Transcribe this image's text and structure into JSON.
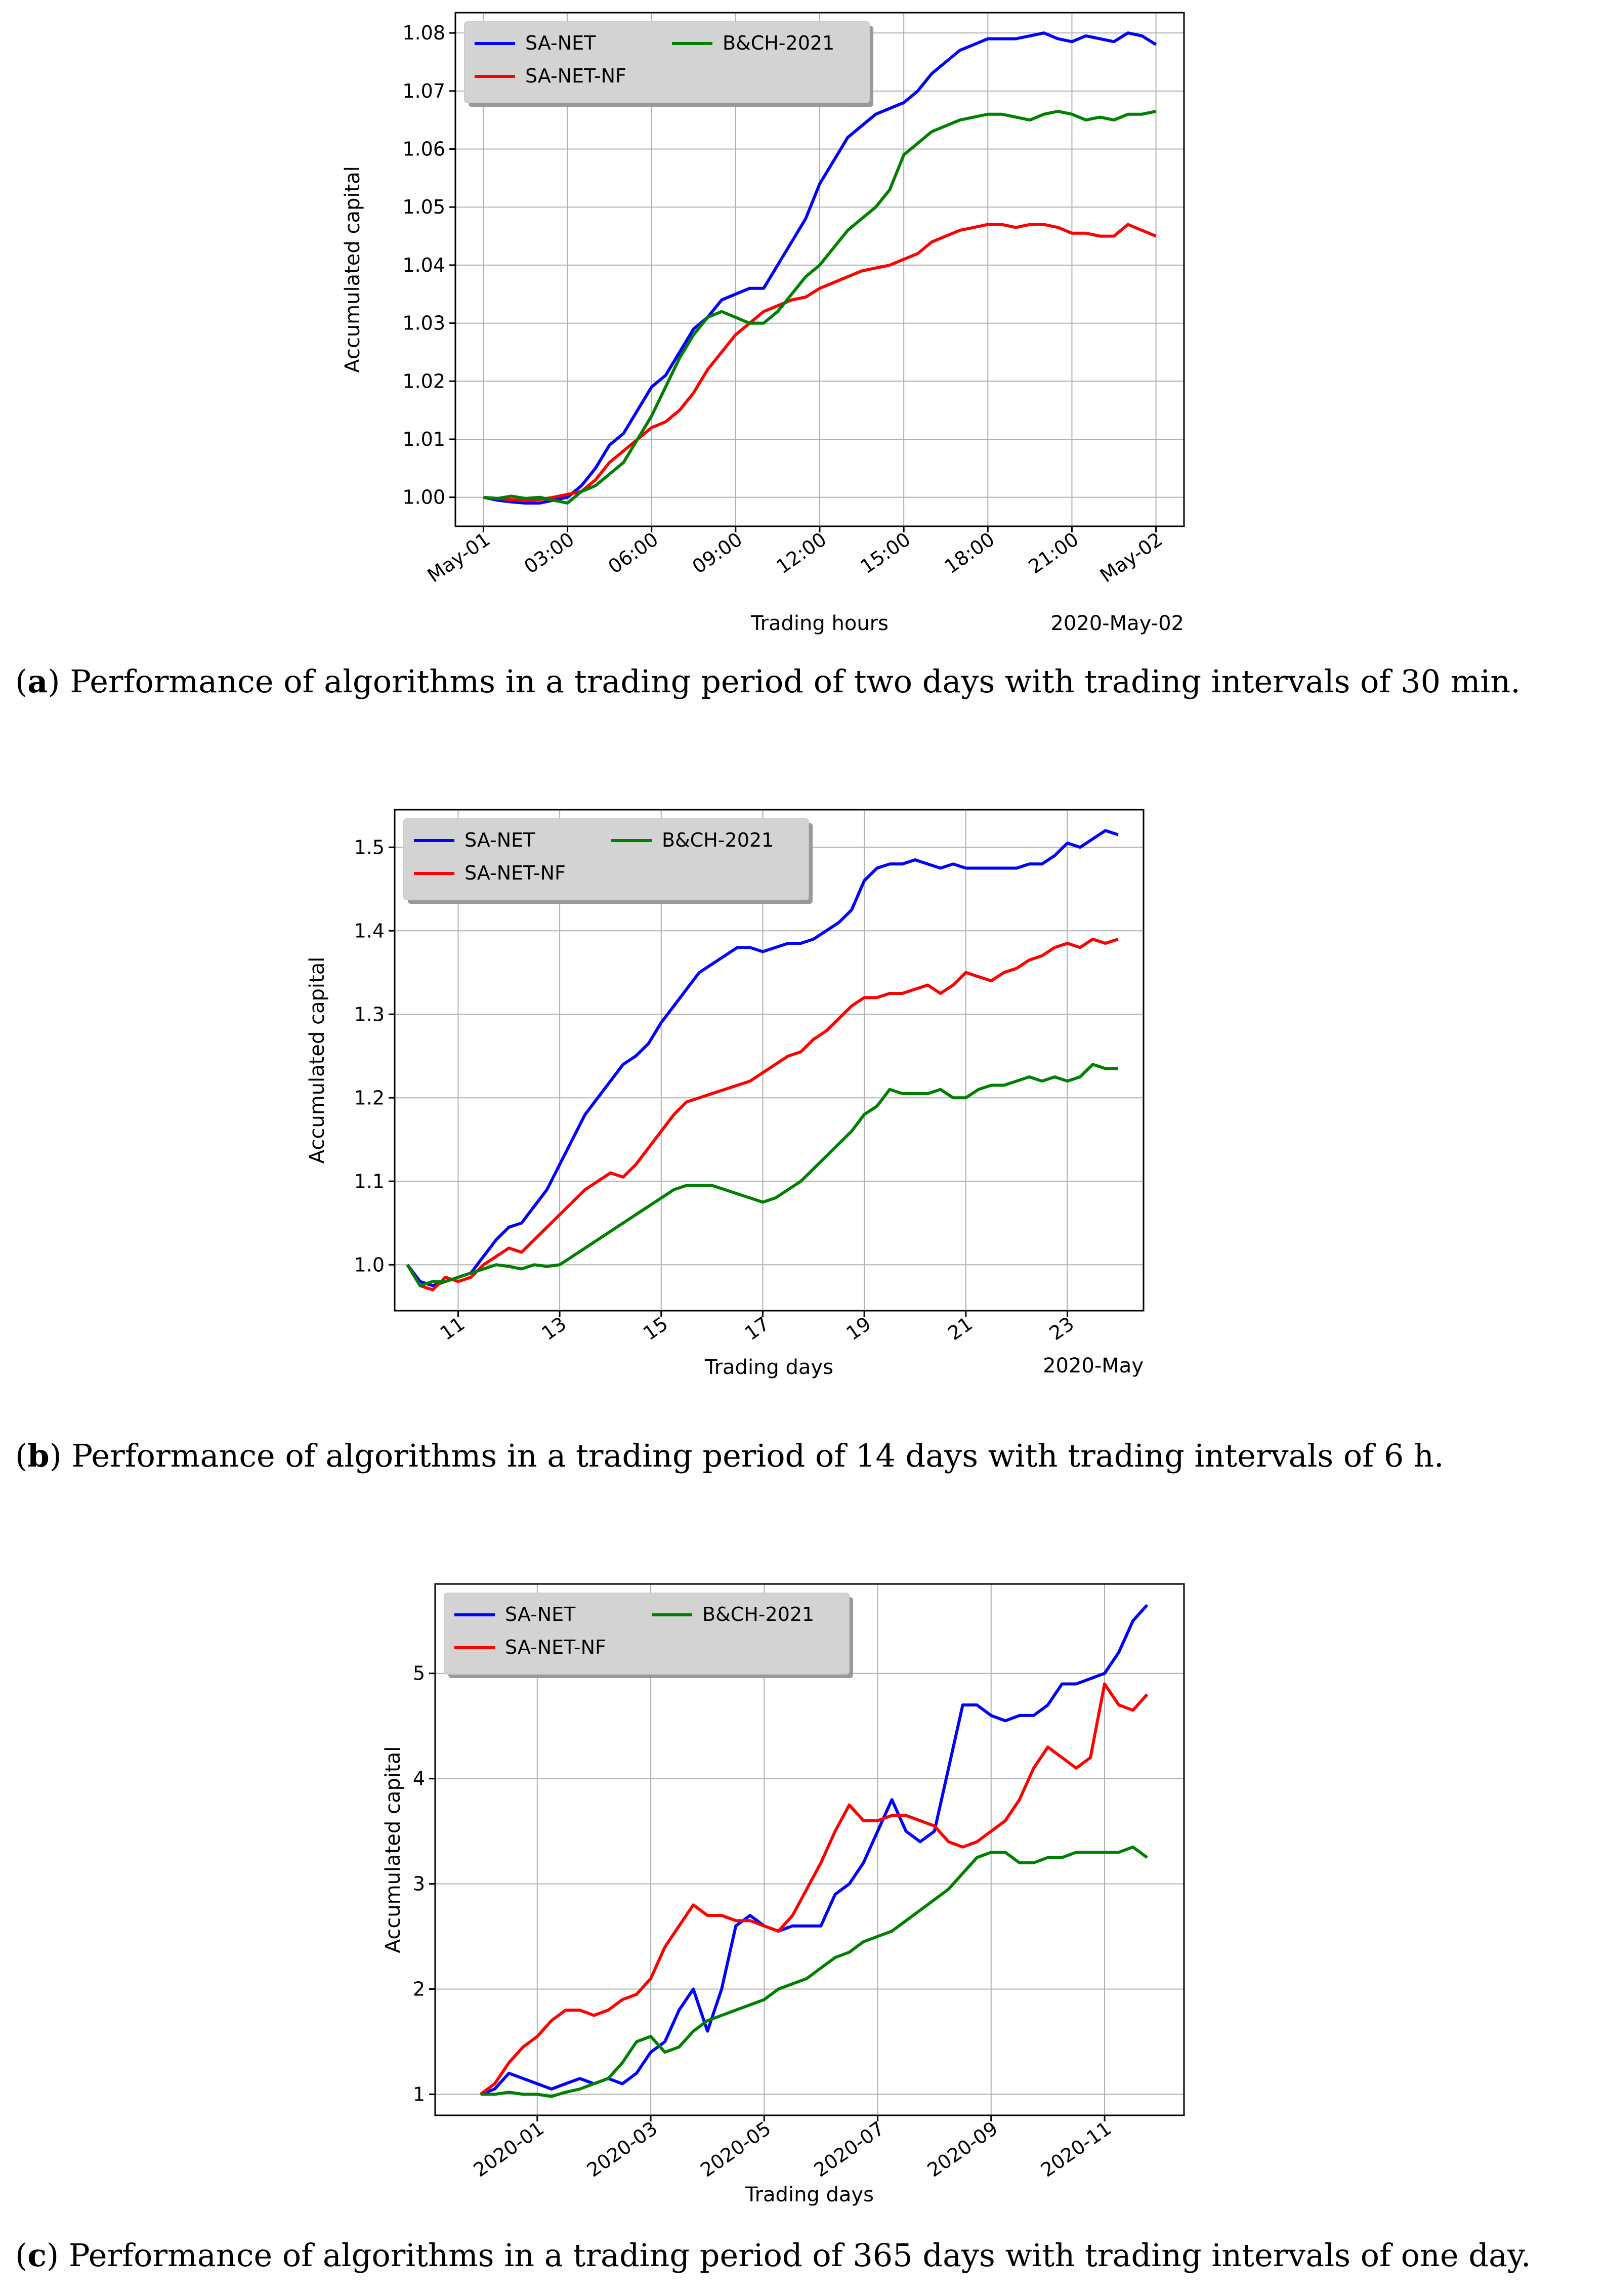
{
  "charts": [
    {
      "title": "",
      "xlabel": "Trading hours",
      "ylabel": "Accumulated capital",
      "x_offset_label": "2020-May-02",
      "caption_label": "a",
      "caption_text": " Performance of algorithms in a trading period of two days with trading intervals of 30 min.",
      "colors": {
        "SA-NET": "#0000ff",
        "SA-NET-NF": "#ff0000",
        "B&CH-2021": "#008000"
      },
      "legend": [
        "SA-NET",
        "SA-NET-NF",
        "B&CH-2021"
      ]
    },
    {
      "title": "",
      "xlabel": "Trading days",
      "ylabel": "Accumulated capital",
      "x_offset_label": "2020-May",
      "caption_label": "b",
      "caption_text": " Performance of algorithms in a trading period of 14 days with trading intervals of 6 h.",
      "colors": {
        "SA-NET": "#0000ff",
        "SA-NET-NF": "#ff0000",
        "B&CH-2021": "#008000"
      },
      "legend": [
        "SA-NET",
        "SA-NET-NF",
        "B&CH-2021"
      ]
    },
    {
      "title": "",
      "xlabel": "Trading days",
      "ylabel": "Accumulated capital",
      "x_offset_label": "",
      "caption_label": "c",
      "caption_text": " Performance of algorithms in a trading period of 365 days with trading intervals of one day.",
      "colors": {
        "SA-NET": "#0000ff",
        "SA-NET-NF": "#ff0000",
        "B&CH-2021": "#008000"
      },
      "legend": [
        "SA-NET",
        "SA-NET-NF",
        "B&CH-2021"
      ]
    }
  ],
  "chart_data": [
    {
      "type": "line",
      "title": "",
      "xlabel": "Trading hours",
      "ylabel": "Accumulated capital",
      "xlim": [
        -1,
        25
      ],
      "ylim": [
        0.995,
        1.0835
      ],
      "xticks": [
        0,
        3,
        6,
        9,
        12,
        15,
        18,
        21,
        24
      ],
      "xtick_labels": [
        "May-01",
        "03:00",
        "06:00",
        "09:00",
        "12:00",
        "15:00",
        "18:00",
        "21:00",
        "May-02"
      ],
      "yticks": [
        1.0,
        1.01,
        1.02,
        1.03,
        1.04,
        1.05,
        1.06,
        1.07,
        1.08
      ],
      "ytick_labels": [
        "1.00",
        "1.01",
        "1.02",
        "1.03",
        "1.04",
        "1.05",
        "1.06",
        "1.07",
        "1.08"
      ],
      "grid": true,
      "legend_position": "top-left",
      "x": [
        0,
        0.5,
        1,
        1.5,
        2,
        2.5,
        3,
        3.5,
        4,
        4.5,
        5,
        5.5,
        6,
        6.5,
        7,
        7.5,
        8,
        8.5,
        9,
        9.5,
        10,
        10.5,
        11,
        11.5,
        12,
        12.5,
        13,
        13.5,
        14,
        14.5,
        15,
        15.5,
        16,
        16.5,
        17,
        17.5,
        18,
        18.5,
        19,
        19.5,
        20,
        20.5,
        21,
        21.5,
        22,
        22.5,
        23,
        23.5,
        24
      ],
      "series": [
        {
          "name": "SA-NET",
          "values": [
            1.0,
            0.9995,
            0.9992,
            0.999,
            0.999,
            0.9995,
            1.0,
            1.002,
            1.005,
            1.009,
            1.011,
            1.015,
            1.019,
            1.021,
            1.025,
            1.029,
            1.031,
            1.034,
            1.035,
            1.036,
            1.036,
            1.04,
            1.044,
            1.048,
            1.054,
            1.058,
            1.062,
            1.064,
            1.066,
            1.067,
            1.068,
            1.07,
            1.073,
            1.075,
            1.077,
            1.078,
            1.079,
            1.079,
            1.079,
            1.0795,
            1.08,
            1.079,
            1.0785,
            1.0795,
            1.079,
            1.0785,
            1.08,
            1.0795,
            1.078
          ]
        },
        {
          "name": "SA-NET-NF",
          "values": [
            1.0,
            0.9998,
            0.9996,
            0.9994,
            0.9996,
            1.0,
            1.0005,
            1.001,
            1.003,
            1.006,
            1.008,
            1.01,
            1.012,
            1.013,
            1.015,
            1.018,
            1.022,
            1.025,
            1.028,
            1.03,
            1.032,
            1.033,
            1.034,
            1.0345,
            1.036,
            1.037,
            1.038,
            1.039,
            1.0395,
            1.04,
            1.041,
            1.042,
            1.044,
            1.045,
            1.046,
            1.0465,
            1.047,
            1.047,
            1.0465,
            1.047,
            1.047,
            1.0465,
            1.0455,
            1.0455,
            1.045,
            1.045,
            1.047,
            1.046,
            1.045
          ]
        },
        {
          "name": "B&CH-2021",
          "values": [
            1.0,
            0.9998,
            1.0002,
            0.9998,
            1.0,
            0.9995,
            0.999,
            1.001,
            1.002,
            1.004,
            1.006,
            1.01,
            1.014,
            1.019,
            1.024,
            1.028,
            1.031,
            1.032,
            1.031,
            1.03,
            1.03,
            1.032,
            1.035,
            1.038,
            1.04,
            1.043,
            1.046,
            1.048,
            1.05,
            1.053,
            1.059,
            1.061,
            1.063,
            1.064,
            1.065,
            1.0655,
            1.066,
            1.066,
            1.0655,
            1.065,
            1.066,
            1.0665,
            1.066,
            1.065,
            1.0655,
            1.065,
            1.066,
            1.066,
            1.0665
          ]
        }
      ]
    },
    {
      "type": "line",
      "title": "",
      "xlabel": "Trading days",
      "ylabel": "Accumulated capital",
      "xlim": [
        9.75,
        24.5
      ],
      "ylim": [
        0.945,
        1.545
      ],
      "xticks": [
        11,
        13,
        15,
        17,
        19,
        21,
        23
      ],
      "xtick_labels": [
        "11",
        "13",
        "15",
        "17",
        "19",
        "21",
        "23"
      ],
      "yticks": [
        1.0,
        1.1,
        1.2,
        1.3,
        1.4,
        1.5
      ],
      "ytick_labels": [
        "1.0",
        "1.1",
        "1.2",
        "1.3",
        "1.4",
        "1.5"
      ],
      "grid": true,
      "legend_position": "top-left",
      "x": [
        10,
        10.25,
        10.5,
        10.75,
        11,
        11.25,
        11.5,
        11.75,
        12,
        12.25,
        12.5,
        12.75,
        13,
        13.25,
        13.5,
        13.75,
        14,
        14.25,
        14.5,
        14.75,
        15,
        15.25,
        15.5,
        15.75,
        16,
        16.25,
        16.5,
        16.75,
        17,
        17.25,
        17.5,
        17.75,
        18,
        18.25,
        18.5,
        18.75,
        19,
        19.25,
        19.5,
        19.75,
        20,
        20.25,
        20.5,
        20.75,
        21,
        21.25,
        21.5,
        21.75,
        22,
        22.25,
        22.5,
        22.75,
        23,
        23.25,
        23.5,
        23.75,
        24
      ],
      "series": [
        {
          "name": "SA-NET",
          "values": [
            1.0,
            0.98,
            0.975,
            0.98,
            0.985,
            0.99,
            1.01,
            1.03,
            1.045,
            1.05,
            1.07,
            1.09,
            1.12,
            1.15,
            1.18,
            1.2,
            1.22,
            1.24,
            1.25,
            1.265,
            1.29,
            1.31,
            1.33,
            1.35,
            1.36,
            1.37,
            1.38,
            1.38,
            1.375,
            1.38,
            1.385,
            1.385,
            1.39,
            1.4,
            1.41,
            1.425,
            1.46,
            1.475,
            1.48,
            1.48,
            1.485,
            1.48,
            1.475,
            1.48,
            1.475,
            1.475,
            1.475,
            1.475,
            1.475,
            1.48,
            1.48,
            1.49,
            1.505,
            1.5,
            1.51,
            1.52,
            1.515
          ]
        },
        {
          "name": "SA-NET-NF",
          "values": [
            1.0,
            0.975,
            0.97,
            0.985,
            0.98,
            0.985,
            1.0,
            1.01,
            1.02,
            1.015,
            1.03,
            1.045,
            1.06,
            1.075,
            1.09,
            1.1,
            1.11,
            1.105,
            1.12,
            1.14,
            1.16,
            1.18,
            1.195,
            1.2,
            1.205,
            1.21,
            1.215,
            1.22,
            1.23,
            1.24,
            1.25,
            1.255,
            1.27,
            1.28,
            1.295,
            1.31,
            1.32,
            1.32,
            1.325,
            1.325,
            1.33,
            1.335,
            1.325,
            1.335,
            1.35,
            1.345,
            1.34,
            1.35,
            1.355,
            1.365,
            1.37,
            1.38,
            1.385,
            1.38,
            1.39,
            1.385,
            1.39
          ]
        },
        {
          "name": "B&CH-2021",
          "values": [
            1.0,
            0.975,
            0.98,
            0.98,
            0.985,
            0.99,
            0.995,
            1.0,
            0.998,
            0.995,
            1.0,
            0.998,
            1.0,
            1.01,
            1.02,
            1.03,
            1.04,
            1.05,
            1.06,
            1.07,
            1.08,
            1.09,
            1.095,
            1.095,
            1.095,
            1.09,
            1.085,
            1.08,
            1.075,
            1.08,
            1.09,
            1.1,
            1.115,
            1.13,
            1.145,
            1.16,
            1.18,
            1.19,
            1.21,
            1.205,
            1.205,
            1.205,
            1.21,
            1.2,
            1.2,
            1.21,
            1.215,
            1.215,
            1.22,
            1.225,
            1.22,
            1.225,
            1.22,
            1.225,
            1.24,
            1.235,
            1.235
          ]
        }
      ]
    },
    {
      "type": "line",
      "title": "",
      "xlabel": "Trading days",
      "ylabel": "Accumulated capital",
      "xlim": [
        -0.8,
        12.4
      ],
      "ylim": [
        0.8,
        5.85
      ],
      "xticks": [
        1,
        3,
        5,
        7,
        9,
        11
      ],
      "xtick_labels": [
        "2020-01",
        "2020-03",
        "2020-05",
        "2020-07",
        "2020-09",
        "2020-11"
      ],
      "yticks": [
        1,
        2,
        3,
        4,
        5
      ],
      "ytick_labels": [
        "1",
        "2",
        "3",
        "4",
        "5"
      ],
      "grid": true,
      "legend_position": "top-left",
      "x": [
        0,
        0.25,
        0.5,
        0.75,
        1,
        1.25,
        1.5,
        1.75,
        2,
        2.25,
        2.5,
        2.75,
        3,
        3.25,
        3.5,
        3.75,
        4,
        4.25,
        4.5,
        4.75,
        5,
        5.25,
        5.5,
        5.75,
        6,
        6.25,
        6.5,
        6.75,
        7,
        7.25,
        7.5,
        7.75,
        8,
        8.25,
        8.5,
        8.75,
        9,
        9.25,
        9.5,
        9.75,
        10,
        10.25,
        10.5,
        10.75,
        11,
        11.25,
        11.5,
        11.75
      ],
      "series": [
        {
          "name": "SA-NET",
          "values": [
            1.0,
            1.05,
            1.2,
            1.15,
            1.1,
            1.05,
            1.1,
            1.15,
            1.1,
            1.15,
            1.1,
            1.2,
            1.4,
            1.5,
            1.8,
            2.0,
            1.6,
            2.0,
            2.6,
            2.7,
            2.6,
            2.55,
            2.6,
            2.6,
            2.6,
            2.9,
            3.0,
            3.2,
            3.5,
            3.8,
            3.5,
            3.4,
            3.5,
            4.1,
            4.7,
            4.7,
            4.6,
            4.55,
            4.6,
            4.6,
            4.7,
            4.9,
            4.9,
            4.95,
            5.0,
            5.2,
            5.5,
            5.65
          ]
        },
        {
          "name": "SA-NET-NF",
          "values": [
            1.0,
            1.1,
            1.3,
            1.45,
            1.55,
            1.7,
            1.8,
            1.8,
            1.75,
            1.8,
            1.9,
            1.95,
            2.1,
            2.4,
            2.6,
            2.8,
            2.7,
            2.7,
            2.65,
            2.65,
            2.6,
            2.55,
            2.7,
            2.95,
            3.2,
            3.5,
            3.75,
            3.6,
            3.6,
            3.65,
            3.65,
            3.6,
            3.55,
            3.4,
            3.35,
            3.4,
            3.5,
            3.6,
            3.8,
            4.1,
            4.3,
            4.2,
            4.1,
            4.2,
            4.9,
            4.7,
            4.65,
            4.8
          ]
        },
        {
          "name": "B&CH-2021",
          "values": [
            1.0,
            1.0,
            1.02,
            1.0,
            1.0,
            0.98,
            1.02,
            1.05,
            1.1,
            1.15,
            1.3,
            1.5,
            1.55,
            1.4,
            1.45,
            1.6,
            1.7,
            1.75,
            1.8,
            1.85,
            1.9,
            2.0,
            2.05,
            2.1,
            2.2,
            2.3,
            2.35,
            2.45,
            2.5,
            2.55,
            2.65,
            2.75,
            2.85,
            2.95,
            3.1,
            3.25,
            3.3,
            3.3,
            3.2,
            3.2,
            3.25,
            3.25,
            3.3,
            3.3,
            3.3,
            3.3,
            3.35,
            3.25
          ]
        }
      ]
    }
  ]
}
